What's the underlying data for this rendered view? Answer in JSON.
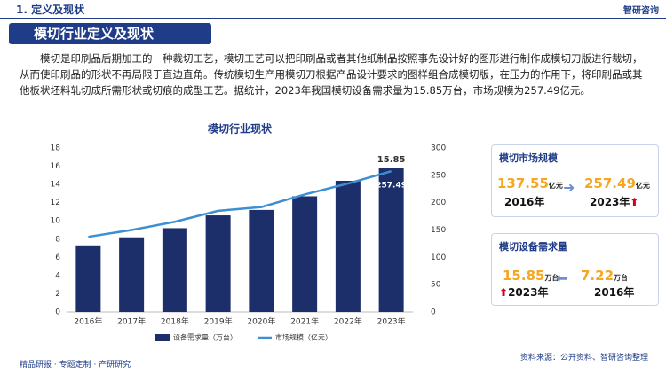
{
  "header": {
    "title": "1. 定义及现状",
    "logo": "智研咨询"
  },
  "section_title": "模切行业定义及现状",
  "intro": "模切是印刷品后期加工的一种裁切工艺，模切工艺可以把印刷品或者其他纸制品按照事先设计好的图形进行制作成模切刀版进行裁切，从而使印刷品的形状不再局限于直边直角。传统模切生产用模切刀根据产品设计要求的图样组合成模切版，在压力的作用下，将印刷品或其他板状坯料轧切成所需形状或切痕的成型工艺。据统计，2023年我国模切设备需求量为15.85万台，市场规模为257.49亿元。",
  "chart_data": {
    "type": "bar_line",
    "title": "模切行业现状",
    "categories": [
      "2016年",
      "2017年",
      "2018年",
      "2019年",
      "2020年",
      "2021年",
      "2022年",
      "2023年"
    ],
    "series": [
      {
        "name": "设备需求量（万台）",
        "color": "#1c2f6b",
        "type": "bar",
        "values": [
          7.22,
          8.2,
          9.2,
          10.6,
          11.2,
          12.7,
          14.4,
          15.85
        ],
        "value_labels": [
          null,
          null,
          null,
          null,
          null,
          null,
          null,
          "15.85"
        ]
      },
      {
        "name": "市场规模（亿元）",
        "color": "#3d8fd4",
        "type": "line",
        "axis": "y2",
        "values": [
          137.55,
          150,
          165,
          185,
          192,
          215,
          235,
          257.49
        ],
        "value_labels": [
          null,
          null,
          null,
          null,
          null,
          null,
          null,
          "257.49"
        ]
      }
    ],
    "ylim": [
      0,
      18
    ],
    "yticks": [
      0,
      2,
      4,
      6,
      8,
      10,
      12,
      14,
      16,
      18
    ],
    "y2lim": [
      0,
      300
    ],
    "y2ticks": [
      0,
      50,
      100,
      150,
      200,
      250,
      300
    ]
  },
  "cards": [
    {
      "title": "模切市场规模",
      "left": {
        "value": "137.55",
        "unit": "亿元",
        "year": "2016年"
      },
      "right": {
        "value": "257.49",
        "unit": "亿元",
        "year": "2023年"
      }
    },
    {
      "title": "模切设备需求量",
      "left": {
        "value": "15.85",
        "unit": "万台",
        "year": "2023年"
      },
      "right": {
        "value": "7.22",
        "unit": "万台",
        "year": "2016年"
      }
    }
  ],
  "footer": {
    "left": "精品研报 · 专题定制 · 产研研究",
    "source": "资料来源：公开资料、智研咨询整理"
  }
}
